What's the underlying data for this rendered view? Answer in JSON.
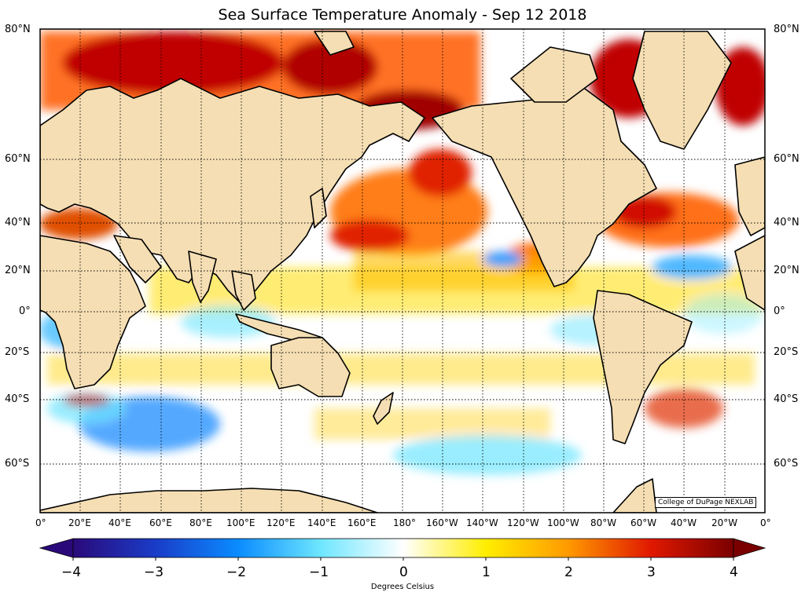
{
  "title": "Sea Surface Temperature Anomaly - Sep 12 2018",
  "lat_labels": [
    "80°N",
    "60°N",
    "40°N",
    "20°N",
    "0°",
    "20°S",
    "40°S",
    "60°S"
  ],
  "lat_values": [
    80,
    60,
    40,
    20,
    0,
    -20,
    -40,
    -60
  ],
  "lon_labels": [
    "0°",
    "20°E",
    "40°E",
    "60°E",
    "80°E",
    "100°E",
    "120°E",
    "140°E",
    "160°E",
    "180°",
    "160°W",
    "140°W",
    "120°W",
    "100°W",
    "80°W",
    "60°W",
    "40°W",
    "20°W",
    "0°"
  ],
  "colorbar": {
    "ticks": [
      "−4",
      "−3",
      "−2",
      "−1",
      "0",
      "1",
      "2",
      "3",
      "4"
    ],
    "min": -4,
    "max": 4,
    "label": "Degrees Celsius",
    "colors": [
      "#2a0a7a",
      "#1a3cc8",
      "#0a8cff",
      "#6ee6ff",
      "#ffffff",
      "#ffee00",
      "#ff9900",
      "#e01800",
      "#7a0000"
    ]
  },
  "credit": "College of DuPage NEXLAB",
  "colors": {
    "land": "#f5deb3",
    "ocean_neutral": "#ffffff",
    "coast": "#000000"
  }
}
